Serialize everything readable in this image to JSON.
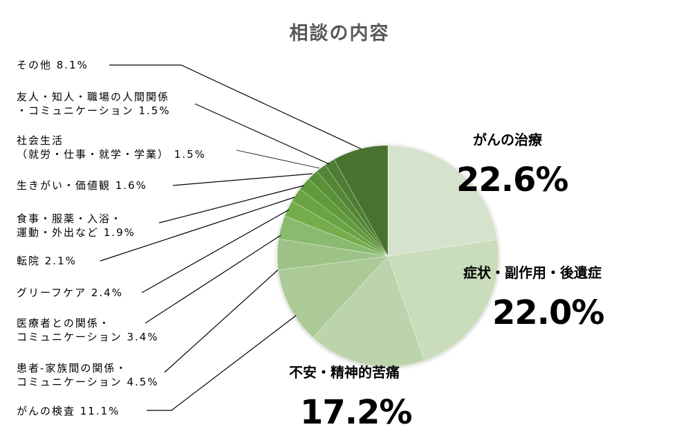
{
  "chart_data": {
    "type": "pie",
    "title": "相談の内容",
    "start_angle_deg": 0,
    "direction": "clockwise",
    "slices": [
      {
        "label": "がんの治療",
        "value": 22.6,
        "color": "#d6e3cc"
      },
      {
        "label": "症状・副作用・後遺症",
        "value": 22.0,
        "color": "#c9dcbb"
      },
      {
        "label": "不安・精神的苦痛",
        "value": 17.2,
        "color": "#bcd4ab"
      },
      {
        "label": "がんの検査",
        "value": 11.1,
        "color": "#abca97"
      },
      {
        "label": "患者-家族間の関係・コミュニケーション",
        "value": 4.5,
        "color": "#9dc287"
      },
      {
        "label": "医療者との関係・コミュニケーション",
        "value": 3.4,
        "color": "#8aba6f"
      },
      {
        "label": "グリーフケア",
        "value": 2.4,
        "color": "#74ad4d"
      },
      {
        "label": "転院",
        "value": 2.1,
        "color": "#6aa344"
      },
      {
        "label": "食事・服薬・入浴・運動・外出など",
        "value": 1.9,
        "color": "#619a3e"
      },
      {
        "label": "生きがい・価値観",
        "value": 1.6,
        "color": "#5a9039"
      },
      {
        "label": "社会生活（就労・仕事・就学・学業）",
        "value": 1.5,
        "color": "#538535"
      },
      {
        "label": "友人・知人・職場の人間関係・コミュニケーション",
        "value": 1.5,
        "color": "#4e7d32"
      },
      {
        "label": "その他",
        "value": 8.1,
        "color": "#4a722e"
      }
    ],
    "legend": "none (leader-line labels)"
  },
  "title": "相談の内容",
  "big_labels": [
    {
      "category": "がんの治療",
      "value": "22.6%"
    },
    {
      "category": "症状・副作用・後遺症",
      "value": "22.0%"
    },
    {
      "category": "不安・精神的苦痛",
      "value": "17.2%"
    }
  ],
  "small_labels": [
    {
      "line1": "その他 8.1%",
      "line2": ""
    },
    {
      "line1": "友人・知人・職場の人間関係",
      "line2": "・コミュニケーション 1.5%"
    },
    {
      "line1": "社会生活",
      "line2": "（就労・仕事・就学・学業） 1.5%"
    },
    {
      "line1": "生きがい・価値観 1.6%",
      "line2": ""
    },
    {
      "line1": "食事・服薬・入浴・",
      "line2": "運動・外出など 1.9%"
    },
    {
      "line1": "転院 2.1%",
      "line2": ""
    },
    {
      "line1": "グリーフケア 2.4%",
      "line2": ""
    },
    {
      "line1": "医療者との関係・",
      "line2": "コミュニケーション 3.4%"
    },
    {
      "line1": "患者-家族間の関係・",
      "line2": "コミュニケーション 4.5%"
    },
    {
      "line1": "がんの検査 11.1%",
      "line2": ""
    }
  ]
}
